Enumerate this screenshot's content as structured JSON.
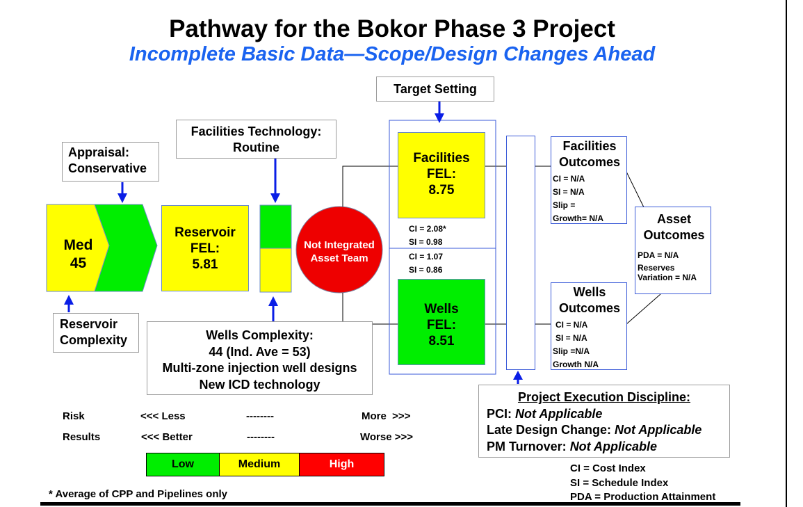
{
  "title": "Pathway for the Bokor Phase 3 Project",
  "subtitle": "Incomplete Basic Data—Scope/Design Changes Ahead",
  "target_setting": "Target Setting",
  "appraisal": {
    "line1": "Appraisal:",
    "line2": "Conservative"
  },
  "facilities_technology": {
    "line1": "Facilities Technology:",
    "line2": "Routine"
  },
  "reservoir_complexity": {
    "line1": "Reservoir",
    "line2": "Complexity",
    "level": "Med",
    "score": "45"
  },
  "reservoir_fel": {
    "line1": "Reservoir",
    "line2": "FEL:",
    "value": "5.81"
  },
  "team": {
    "line1": "Not Integrated",
    "line2": "Asset Team"
  },
  "facilities_fel": {
    "line1": "Facilities",
    "line2": "FEL:",
    "value": "8.75"
  },
  "wells_fel": {
    "line1": "Wells",
    "line2": "FEL:",
    "value": "8.51"
  },
  "mid_indices": {
    "ci_fac": "CI = 2.08*",
    "si_fac": "SI = 0.98",
    "ci_wells": "CI = 1.07",
    "si_wells": "SI = 0.86"
  },
  "facilities_outcomes": {
    "line1": "Facilities",
    "line2": "Outcomes",
    "ci": "CI = N/A",
    "si": "SI = N/A",
    "slip1": "Slip =",
    "slip2": "Growth= N/A"
  },
  "wells_outcomes": {
    "line1": "Wells",
    "line2": "Outcomes",
    "ci": "CI = N/A",
    "si": "SI = N/A",
    "slip1": "Slip =N/A",
    "slip2": "Growth N/A"
  },
  "asset_outcomes": {
    "line1": "Asset",
    "line2": "Outcomes",
    "pda": "PDA = N/A",
    "reserves1": "Reserves",
    "reserves2": "Variation = N/A"
  },
  "wells_complexity": {
    "line1": "Wells Complexity:",
    "line2": "44 (Ind. Ave = 53)",
    "line3": "Multi-zone injection well designs",
    "line4": "New ICD technology"
  },
  "ped": {
    "heading": "Project Execution Discipline:",
    "pci_label": "PCI:",
    "pci_value": "Not Applicable",
    "ldc_label": "Late Design Change:",
    "ldc_value": "Not Applicable",
    "pmt_label": "PM Turnover:",
    "pmt_value": "Not Applicable"
  },
  "legend": {
    "risk": "Risk",
    "risk_less": "<<< Less",
    "risk_dash": "--------",
    "risk_more": "More  >>>",
    "results": "Results",
    "results_better": "<<< Better",
    "results_dash": "--------",
    "results_worse": "Worse >>>",
    "low": "Low",
    "medium": "Medium",
    "high": "High",
    "colors": {
      "low": "#00ee00",
      "medium": "#ffff00",
      "high": "#ff0000"
    }
  },
  "footnote": "* Average of CPP and Pipelines only",
  "abbrev": {
    "ci": "CI = Cost Index",
    "si": "SI = Schedule Index",
    "pda": "PDA = Production Attainment"
  },
  "colors": {
    "accent_blue": "#1a63f0",
    "arrow_blue": "#0a1ee6",
    "green": "#00ee00",
    "yellow": "#ffff00",
    "red": "#ee0000"
  }
}
